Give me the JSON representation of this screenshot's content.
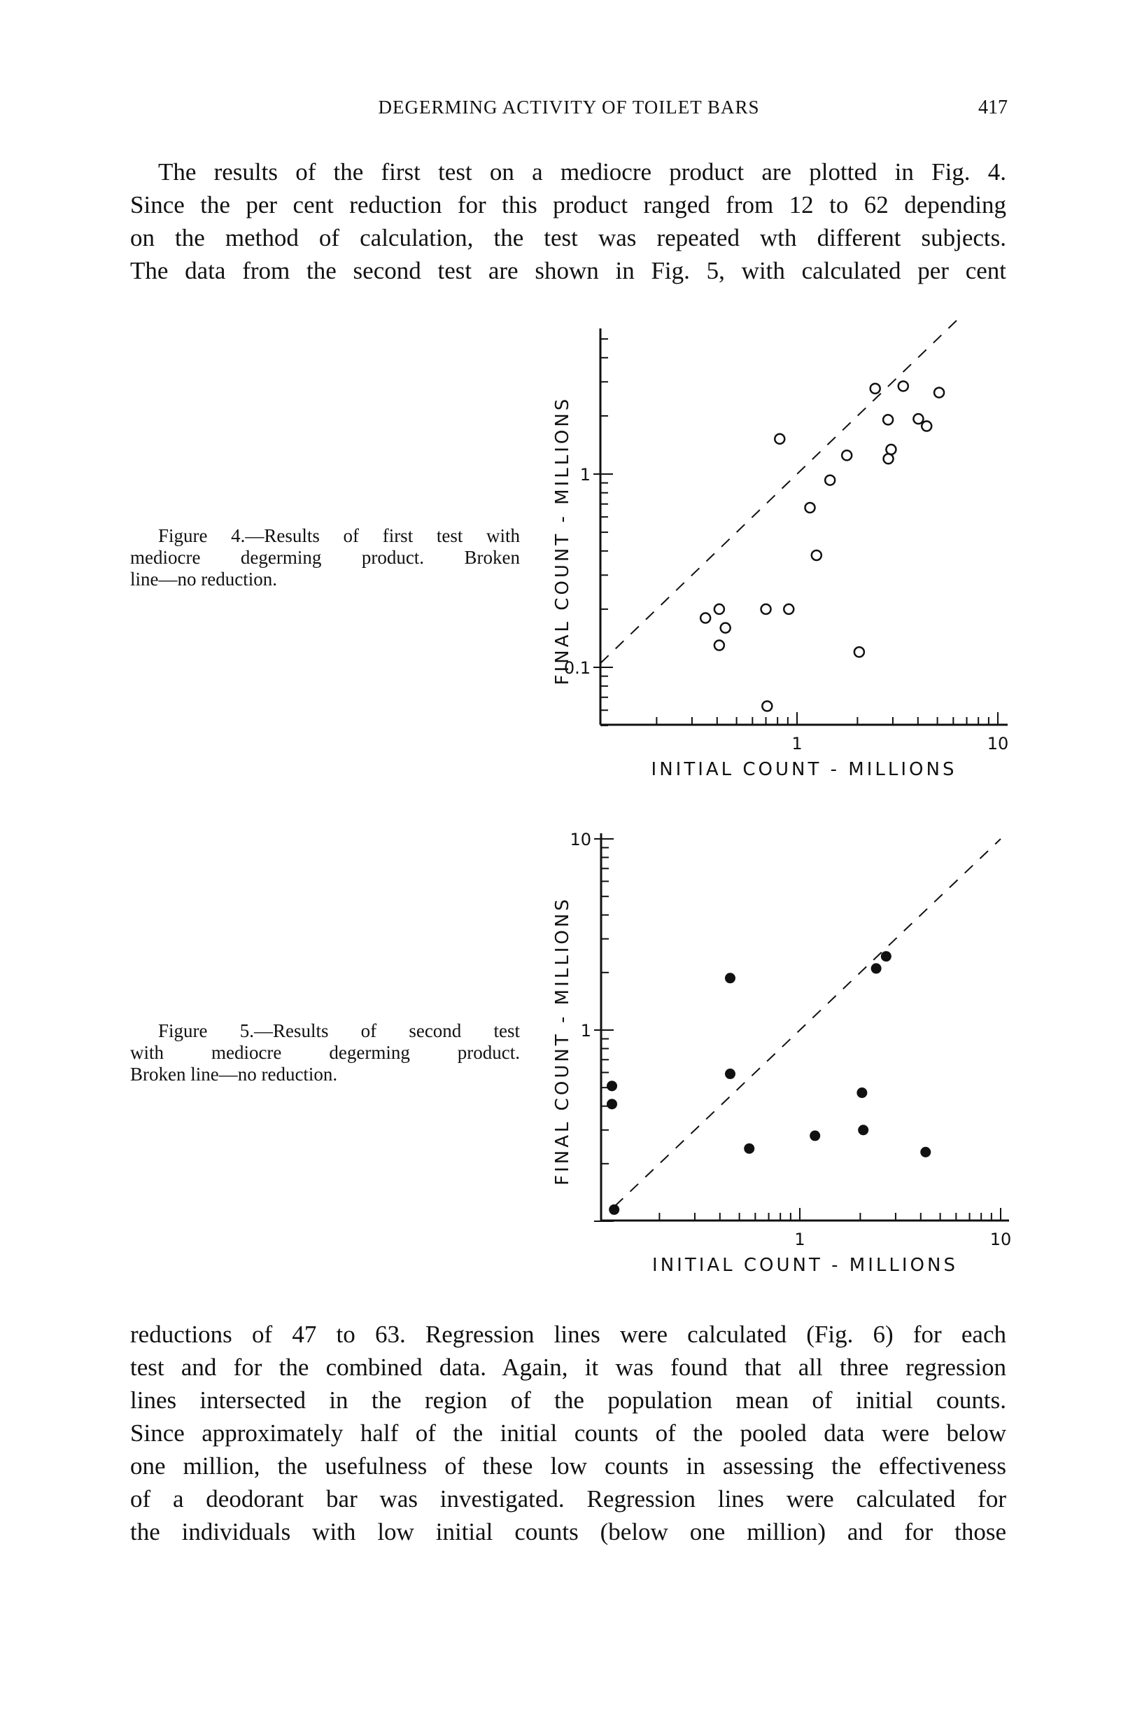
{
  "header": {
    "running_title": "DEGERMING ACTIVITY OF TOILET BARS",
    "page_number": "417"
  },
  "paragraph_top": {
    "lines": [
      "The results of the first test on a mediocre product are plotted in Fig. 4.",
      "Since the per cent reduction for this product ranged from 12 to 62 depending",
      "on the method of calculation, the test was repeated wth different subjects.",
      "The data from the second test are shown in Fig. 5, with calculated per cent"
    ]
  },
  "figure4_caption": {
    "lines": [
      "Figure 4.—Results of first test with",
      "mediocre degerming product. Broken",
      "line—no reduction."
    ]
  },
  "figure5_caption": {
    "lines": [
      "Figure 5.—Results of second test",
      "with mediocre degerming product.",
      "Broken line—no reduction."
    ]
  },
  "paragraph_bottom": {
    "lines": [
      "reductions of 47 to 63.   Regression lines were calculated (Fig. 6) for each",
      "test and for the combined data.   Again, it was found that all three regression",
      "lines intersected in the region of the population mean of initial counts.",
      "Since approximately half of the initial counts of the pooled data were below",
      "one million, the usefulness of these low counts in assessing the effectiveness",
      "of a deodorant bar was investigated.   Regression lines were calculated for",
      "the individuals with low initial counts (below one million) and for those"
    ]
  },
  "chart_data": [
    {
      "type": "scatter",
      "figure": "Figure 4",
      "xlabel": "INITIAL COUNT - MILLIONS",
      "ylabel": "FINAL COUNT - MILLIONS",
      "xscale": "log",
      "yscale": "log",
      "xlim": [
        0.1,
        10.5
      ],
      "ylim": [
        0.05,
        5.7
      ],
      "xticks": [
        {
          "value": 1,
          "label": "1"
        },
        {
          "value": 10,
          "label": "10"
        }
      ],
      "yticks": [
        {
          "value": 0.1,
          "label": "0.1"
        },
        {
          "value": 1,
          "label": "1"
        }
      ],
      "marker": "open-circle",
      "reference_line": {
        "style": "dashed",
        "equation": "y = x",
        "from": 0.105,
        "to": 6.3
      },
      "grid": false,
      "points": [
        [
          2.45,
          2.77
        ],
        [
          3.38,
          2.85
        ],
        [
          5.1,
          2.64
        ],
        [
          2.84,
          1.91
        ],
        [
          4.02,
          1.93
        ],
        [
          4.42,
          1.77
        ],
        [
          0.82,
          1.52
        ],
        [
          1.77,
          1.25
        ],
        [
          2.94,
          1.34
        ],
        [
          2.85,
          1.2
        ],
        [
          1.46,
          0.93
        ],
        [
          1.16,
          0.67
        ],
        [
          1.25,
          0.38
        ],
        [
          0.35,
          0.18
        ],
        [
          0.41,
          0.2
        ],
        [
          0.44,
          0.16
        ],
        [
          0.41,
          0.13
        ],
        [
          0.7,
          0.2
        ],
        [
          0.91,
          0.2
        ],
        [
          2.04,
          0.12
        ],
        [
          0.71,
          0.063
        ]
      ]
    },
    {
      "type": "scatter",
      "figure": "Figure 5",
      "xlabel": "INITIAL COUNT - MILLIONS",
      "ylabel": "FINAL COUNT - MILLIONS",
      "xscale": "log",
      "yscale": "log",
      "xlim": [
        0.1,
        10.5
      ],
      "ylim": [
        0.1,
        10
      ],
      "xticks": [
        {
          "value": 1,
          "label": "1"
        },
        {
          "value": 10,
          "label": "10"
        }
      ],
      "yticks": [
        {
          "value": 1,
          "label": "1"
        },
        {
          "value": 10,
          "label": "10"
        }
      ],
      "marker": "filled-circle",
      "reference_line": {
        "style": "dashed",
        "equation": "y = x",
        "from": 0.12,
        "to": 10
      },
      "grid": false,
      "points": [
        [
          0.119,
          0.115
        ],
        [
          0.116,
          0.51
        ],
        [
          0.116,
          0.41
        ],
        [
          0.45,
          1.87
        ],
        [
          0.45,
          0.59
        ],
        [
          0.56,
          0.24
        ],
        [
          1.19,
          0.28
        ],
        [
          2.04,
          0.47
        ],
        [
          2.07,
          0.3
        ],
        [
          2.4,
          2.1
        ],
        [
          2.69,
          2.43
        ],
        [
          4.23,
          0.23
        ]
      ]
    }
  ]
}
